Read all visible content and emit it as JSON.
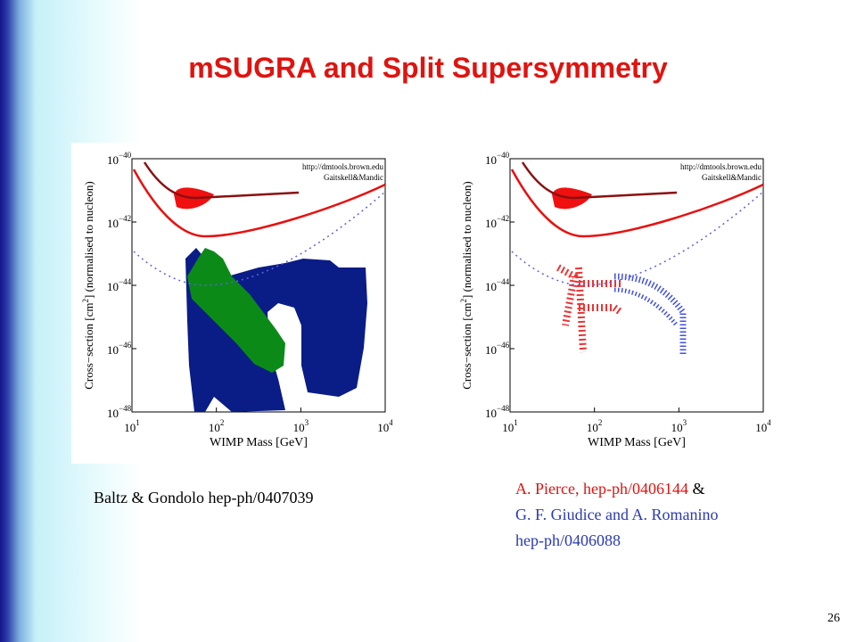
{
  "title": "mSUGRA and Split Supersymmetry",
  "figures": [
    {
      "x_label": "WIMP Mass [GeV]",
      "y_label": {
        "before": "Cross−section [cm",
        "sup": "2",
        "after": "] (normalised to nucleon)"
      },
      "x_ticks": [
        {
          "base": "10",
          "exp": "1"
        },
        {
          "base": "10",
          "exp": "2"
        },
        {
          "base": "10",
          "exp": "3"
        },
        {
          "base": "10",
          "exp": "4"
        }
      ],
      "y_ticks": [
        {
          "base": "10",
          "exp": "−40"
        },
        {
          "base": "10",
          "exp": "−42"
        },
        {
          "base": "10",
          "exp": "−44"
        },
        {
          "base": "10",
          "exp": "−46"
        },
        {
          "base": "10",
          "exp": "−48"
        }
      ],
      "credits": [
        "http://dmtools.brown.edu",
        "Gaitskell&Mandic"
      ]
    },
    {
      "x_label": "WIMP Mass [GeV]",
      "y_label": {
        "before": "Cross−section [cm",
        "sup": "2",
        "after": "] (normalised to nucleon)"
      },
      "x_ticks": [
        {
          "base": "10",
          "exp": "1"
        },
        {
          "base": "10",
          "exp": "2"
        },
        {
          "base": "10",
          "exp": "3"
        },
        {
          "base": "10",
          "exp": "4"
        }
      ],
      "y_ticks": [
        {
          "base": "10",
          "exp": "−40"
        },
        {
          "base": "10",
          "exp": "−42"
        },
        {
          "base": "10",
          "exp": "−44"
        },
        {
          "base": "10",
          "exp": "−46"
        },
        {
          "base": "10",
          "exp": "−48"
        }
      ],
      "credits": [
        "http://dmtools.brown.edu",
        "Gaitskell&Mandic"
      ]
    }
  ],
  "captions": {
    "left": "Baltz & Gondolo hep-ph/0407039",
    "right": {
      "line1_ref": "A. Pierce, hep-ph/0406144",
      "line1_join": "&",
      "line2": "G. F. Giudice and A. Romanino",
      "line3": "hep-ph/0406088"
    }
  },
  "page_number": "26"
}
